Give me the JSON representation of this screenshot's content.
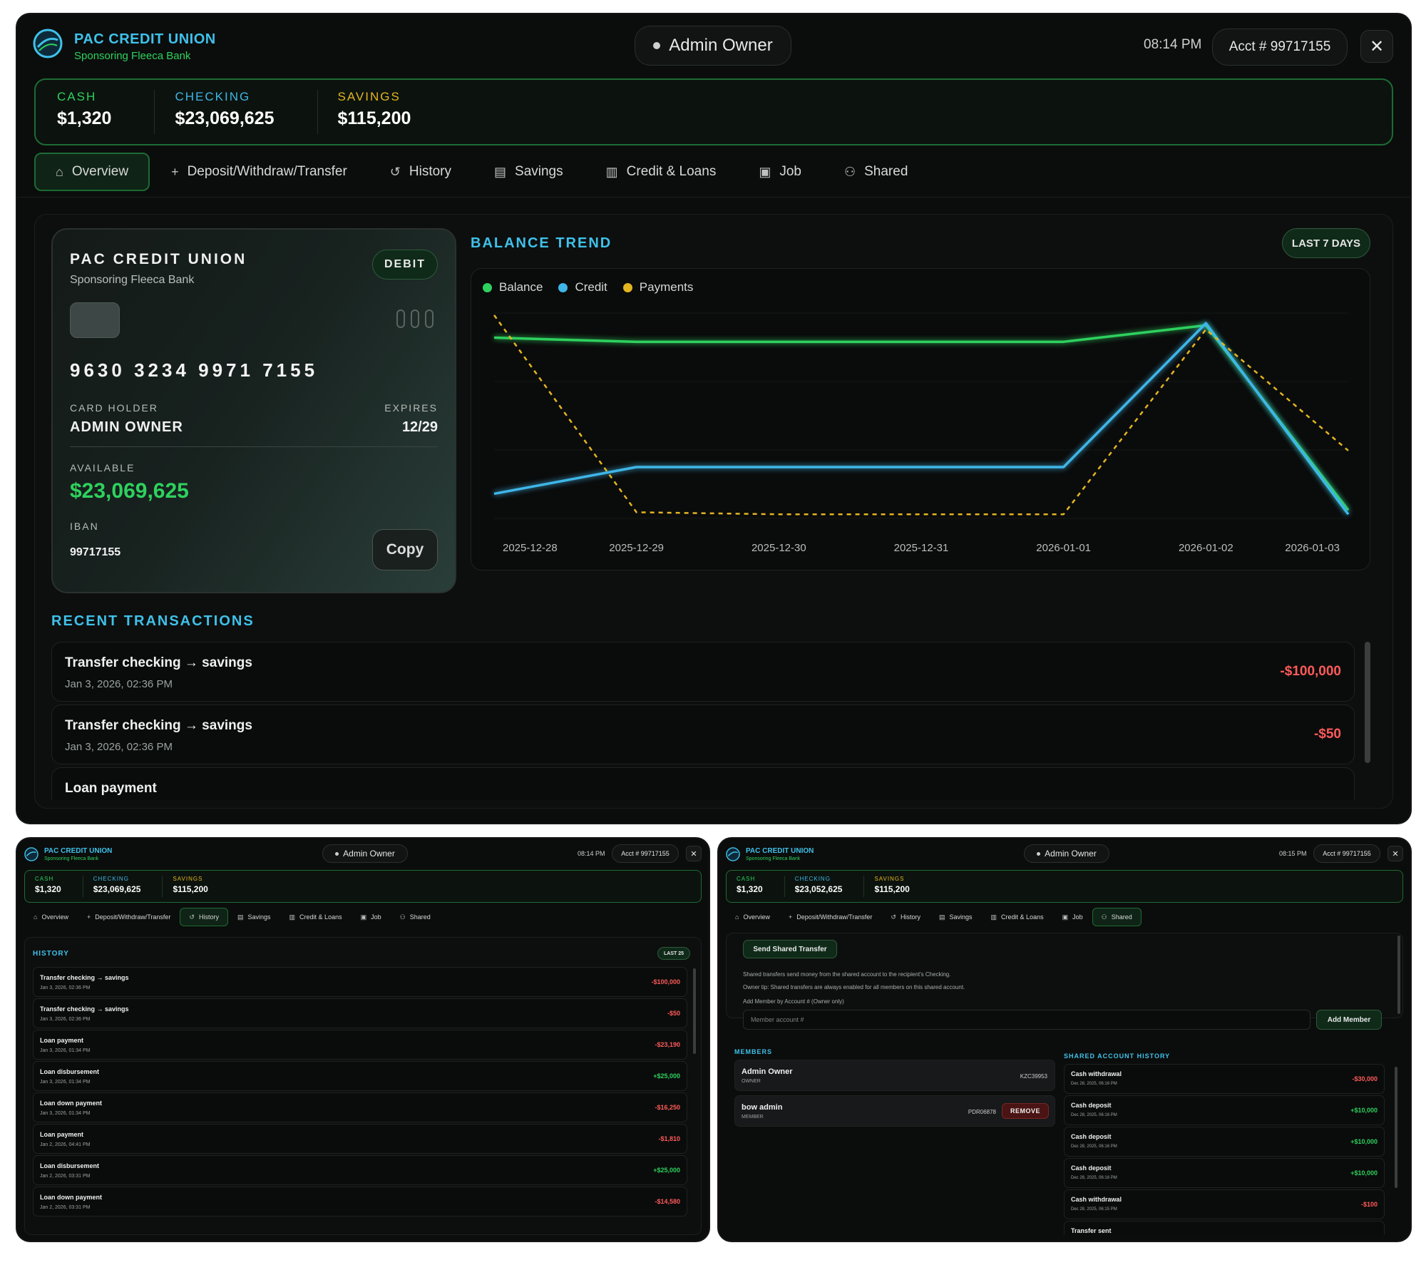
{
  "header": {
    "brand": "PAC CREDIT UNION",
    "brand_sub": "Sponsoring Fleeca Bank",
    "user": "Admin Owner",
    "time": "08:14 PM",
    "acct": "Acct # 99717155",
    "close_glyph": "✕"
  },
  "balances": {
    "cash_label": "CASH",
    "cash": "$1,320",
    "checking_label": "CHECKING",
    "checking": "$23,069,625",
    "savings_label": "SAVINGS",
    "savings": "$115,200"
  },
  "tabs": [
    "Overview",
    "Deposit/Withdraw/Transfer",
    "History",
    "Savings",
    "Credit & Loans",
    "Job",
    "Shared"
  ],
  "tab_icons": [
    "home-icon",
    "plus-icon",
    "history-icon",
    "savings-icon",
    "credit-icon",
    "briefcase-icon",
    "users-icon"
  ],
  "card": {
    "brand": "PAC CREDIT UNION",
    "sub": "Sponsoring Fleeca Bank",
    "badge": "DEBIT",
    "number": "9630 3234 9971 7155",
    "holder_label": "CARD HOLDER",
    "holder": "ADMIN OWNER",
    "expires_label": "EXPIRES",
    "expires": "12/29",
    "available_label": "AVAILABLE",
    "available": "$23,069,625",
    "iban_label": "IBAN",
    "iban": "99717155",
    "copy_label": "Copy"
  },
  "trend": {
    "title": "BALANCE TREND",
    "range_label": "LAST 7 DAYS"
  },
  "chart_data": {
    "type": "line",
    "title": "BALANCE TREND",
    "x": [
      "2025-12-28",
      "2025-12-29",
      "2025-12-30",
      "2025-12-31",
      "2026-01-01",
      "2026-01-02",
      "2026-01-03"
    ],
    "series": [
      {
        "name": "Balance",
        "color": "#2ed15e",
        "values": [
          0.88,
          0.86,
          0.86,
          0.86,
          0.86,
          0.94,
          0.04
        ],
        "style": "solid"
      },
      {
        "name": "Credit",
        "color": "#3fb6e8",
        "values": [
          0.12,
          0.25,
          0.25,
          0.25,
          0.25,
          0.95,
          0.02
        ],
        "style": "solid"
      },
      {
        "name": "Payments",
        "color": "#e3b521",
        "values": [
          0.99,
          0.03,
          0.02,
          0.02,
          0.02,
          0.92,
          0.33
        ],
        "style": "dashed"
      }
    ],
    "ylim": [
      0,
      1
    ],
    "grid": true,
    "legend": "top-left"
  },
  "recent": {
    "title": "RECENT TRANSACTIONS",
    "items": [
      {
        "name": "Transfer checking → savings",
        "date": "Jan 3, 2026, 02:36 PM",
        "amount": "-$100,000",
        "sign": "neg"
      },
      {
        "name": "Transfer checking → savings",
        "date": "Jan 3, 2026, 02:36 PM",
        "amount": "-$50",
        "sign": "neg"
      },
      {
        "name": "Loan payment",
        "date": "",
        "amount": "",
        "sign": "neg"
      }
    ]
  },
  "history_view": {
    "time": "08:14 PM",
    "title": "HISTORY",
    "badge": "LAST 25",
    "items": [
      {
        "name": "Transfer checking → savings",
        "date": "Jan 3, 2026, 02:36 PM",
        "amount": "-$100,000",
        "sign": "neg"
      },
      {
        "name": "Transfer checking → savings",
        "date": "Jan 3, 2026, 02:36 PM",
        "amount": "-$50",
        "sign": "neg"
      },
      {
        "name": "Loan payment",
        "date": "Jan 3, 2026, 01:34 PM",
        "amount": "-$23,190",
        "sign": "neg"
      },
      {
        "name": "Loan disbursement",
        "date": "Jan 3, 2026, 01:34 PM",
        "amount": "+$25,000",
        "sign": "pos"
      },
      {
        "name": "Loan down payment",
        "date": "Jan 3, 2026, 01:34 PM",
        "amount": "-$16,250",
        "sign": "neg"
      },
      {
        "name": "Loan payment",
        "date": "Jan 2, 2026, 04:41 PM",
        "amount": "-$1,810",
        "sign": "neg"
      },
      {
        "name": "Loan disbursement",
        "date": "Jan 2, 2026, 03:31 PM",
        "amount": "+$25,000",
        "sign": "pos"
      },
      {
        "name": "Loan down payment",
        "date": "Jan 2, 2026, 03:31 PM",
        "amount": "-$14,580",
        "sign": "neg"
      }
    ]
  },
  "shared_view": {
    "time": "08:15 PM",
    "checking": "$23,052,625",
    "send_label": "Send Shared Transfer",
    "note1": "Shared transfers send money from the shared account to the recipient's Checking.",
    "note2": "Owner tip: Shared transfers are always enabled for all members on this shared account.",
    "add_label": "Add Member by Account # (Owner only)",
    "input_placeholder": "Member account #",
    "add_button": "Add Member",
    "members_title": "MEMBERS",
    "members": [
      {
        "name": "Admin Owner",
        "role": "OWNER",
        "code": "KZC39953"
      },
      {
        "name": "bow admin",
        "role": "MEMBER",
        "code": "PDR06878",
        "action": "REMOVE"
      }
    ],
    "history_title": "SHARED ACCOUNT HISTORY",
    "history": [
      {
        "name": "Cash withdrawal",
        "date": "Dec 28, 2025, 06:16 PM",
        "amount": "-$30,000",
        "sign": "neg"
      },
      {
        "name": "Cash deposit",
        "date": "Dec 28, 2025, 06:16 PM",
        "amount": "+$10,000",
        "sign": "pos"
      },
      {
        "name": "Cash deposit",
        "date": "Dec 28, 2025, 06:16 PM",
        "amount": "+$10,000",
        "sign": "pos"
      },
      {
        "name": "Cash deposit",
        "date": "Dec 28, 2025, 06:16 PM",
        "amount": "+$10,000",
        "sign": "pos"
      },
      {
        "name": "Cash withdrawal",
        "date": "Dec 28, 2025, 06:15 PM",
        "amount": "-$100",
        "sign": "neg"
      },
      {
        "name": "Transfer sent",
        "date": "",
        "amount": "",
        "sign": "neg"
      }
    ]
  },
  "colors": {
    "accent_green": "#2ed15e",
    "accent_blue": "#3fc1ea",
    "accent_gold": "#e3b521",
    "negative": "#ff5a5a"
  }
}
